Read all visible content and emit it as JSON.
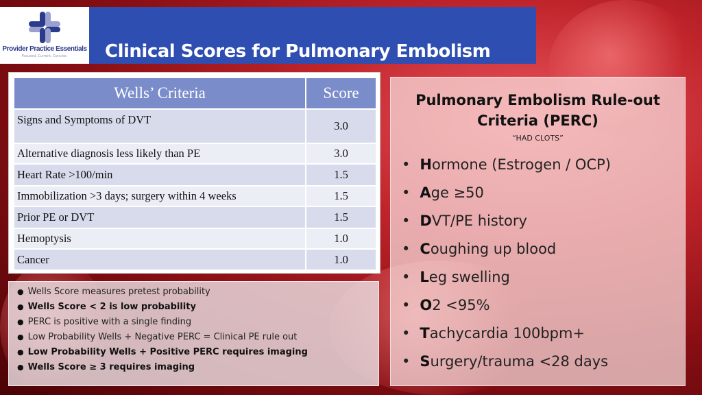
{
  "logo": {
    "name": "Provider Practice Essentials",
    "tagline": "Focused. Current. Concise."
  },
  "title": "Clinical Scores for Pulmonary Embolism",
  "wells": {
    "headers": [
      "Wells’ Criteria",
      "Score"
    ],
    "rows": [
      [
        "Signs and Symptoms of DVT",
        "3.0"
      ],
      [
        "Alternative diagnosis less likely than PE",
        "3.0"
      ],
      [
        "Heart Rate >100/min",
        "1.5"
      ],
      [
        "Immobilization >3 days; surgery within 4 weeks",
        "1.5"
      ],
      [
        "Prior PE or DVT",
        "1.5"
      ],
      [
        "Hemoptysis",
        "1.0"
      ],
      [
        "Cancer",
        "1.0"
      ]
    ]
  },
  "notes": [
    {
      "text": "Wells Score measures pretest probability",
      "bold": false
    },
    {
      "text": "Wells Score < 2 is low probability",
      "bold": true
    },
    {
      "text": "PERC is positive with a single finding",
      "bold": false
    },
    {
      "text": "Low Probability Wells + Negative PERC = Clinical PE rule out",
      "bold": false
    },
    {
      "text": "Low Probability Wells + Positive PERC requires imaging",
      "bold": true
    },
    {
      "text": "Wells Score ≥ 3 requires imaging",
      "bold": true
    }
  ],
  "perc": {
    "title_line1": "Pulmonary Embolism Rule-out",
    "title_line2": "Criteria (PERC)",
    "subtitle": "“HAD CLOTS”",
    "items": [
      {
        "letter": "H",
        "rest": "ormone (Estrogen / OCP)"
      },
      {
        "letter": "A",
        "rest": "ge ≥50"
      },
      {
        "letter": "D",
        "rest": "VT/PE history"
      },
      {
        "letter": "C",
        "rest": "oughing up blood"
      },
      {
        "letter": "L",
        "rest": "eg swelling"
      },
      {
        "letter": "O",
        "rest": "2 <95%"
      },
      {
        "letter": "T",
        "rest": "achycardia 100bpm+"
      },
      {
        "letter": "S",
        "rest": "urgery/trauma <28 days"
      }
    ]
  },
  "colors": {
    "banner": "#2f4eb2",
    "table_header": "#7b8ccb",
    "logo_dark": "#2c3a8c",
    "logo_light": "#9aa0d0"
  }
}
